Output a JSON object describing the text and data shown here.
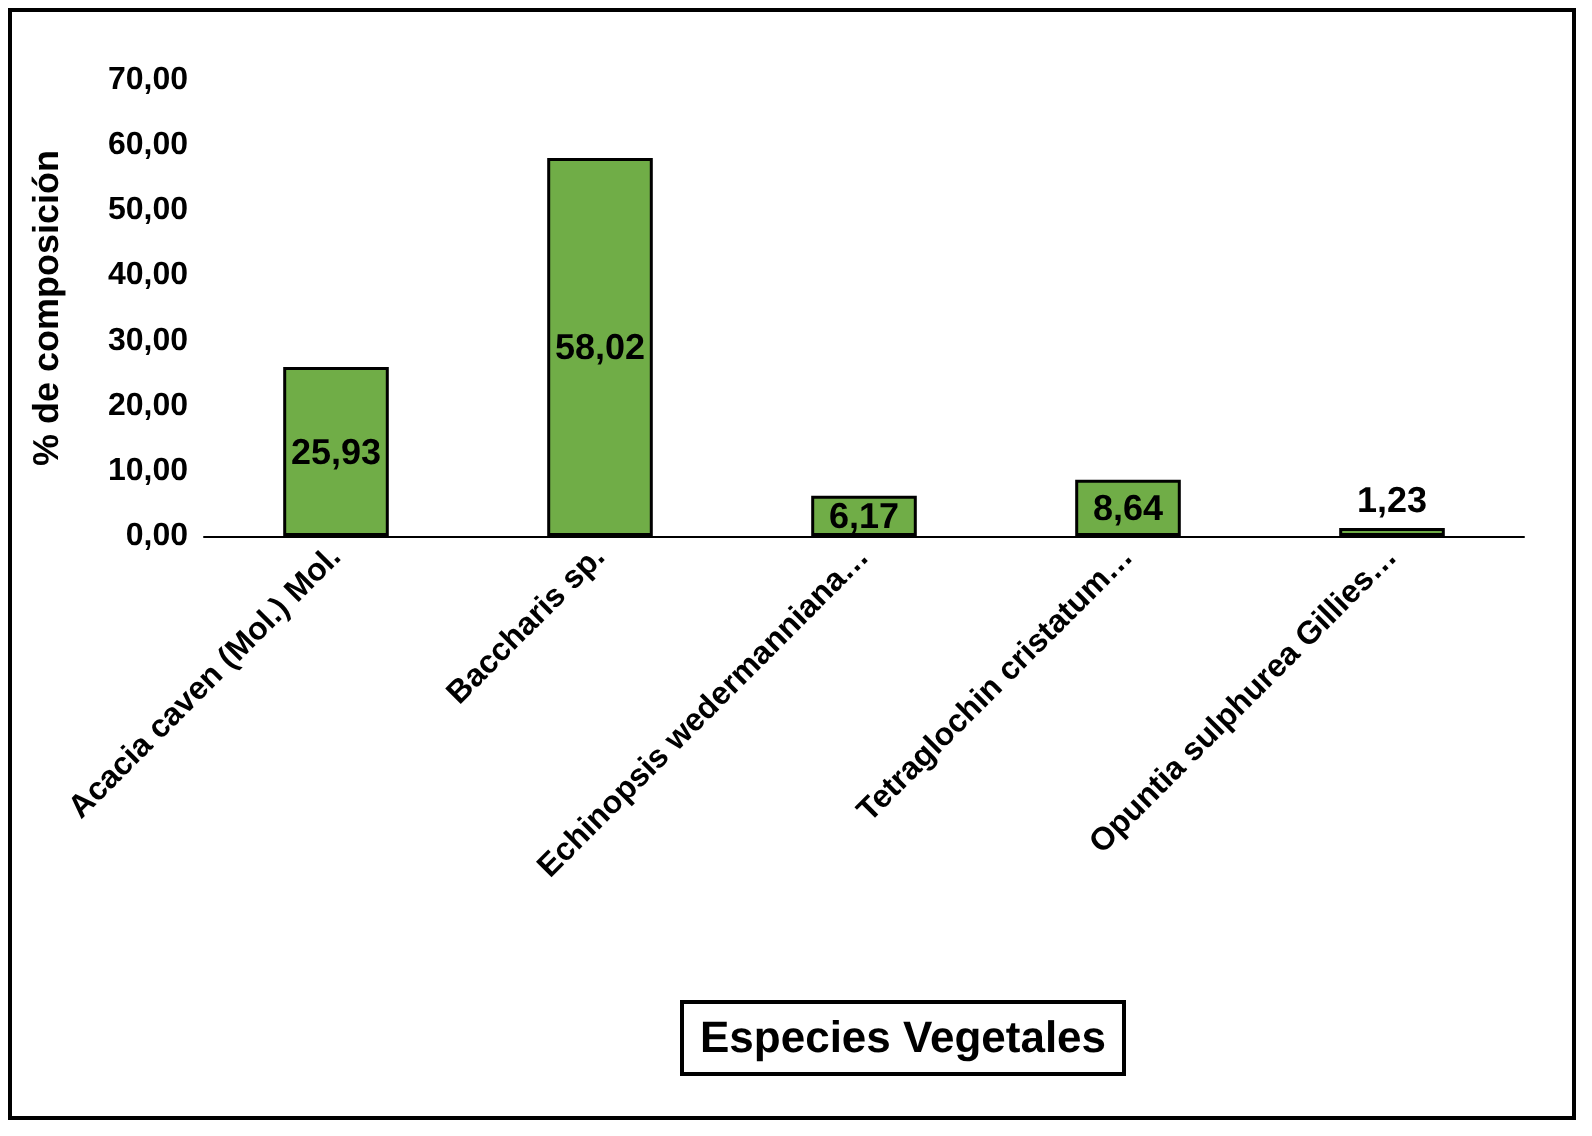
{
  "chart_data": {
    "type": "bar",
    "xlabel": "Especies Vegetales",
    "ylabel": "% de composición",
    "categories": [
      "Acacia caven (Mol.) Mol.",
      "Baccharis sp.",
      "Echinopsis wedermanniana…",
      "Tetraglochin cristatum…",
      "Opuntia sulphurea Gillies…"
    ],
    "values": [
      25.93,
      58.02,
      6.17,
      8.64,
      1.23
    ],
    "value_labels": [
      "25,93",
      "58,02",
      "6,17",
      "8,64",
      "1,23"
    ],
    "color": "#70ad47",
    "ylim": [
      0,
      70
    ],
    "yticks": [
      {
        "value": 0,
        "label": "0,00"
      },
      {
        "value": 10,
        "label": "10,00"
      },
      {
        "value": 20,
        "label": "20,00"
      },
      {
        "value": 30,
        "label": "30,00"
      },
      {
        "value": 40,
        "label": "40,00"
      },
      {
        "value": 50,
        "label": "50,00"
      },
      {
        "value": 60,
        "label": "60,00"
      },
      {
        "value": 70,
        "label": "70,00"
      }
    ],
    "grid": false
  }
}
